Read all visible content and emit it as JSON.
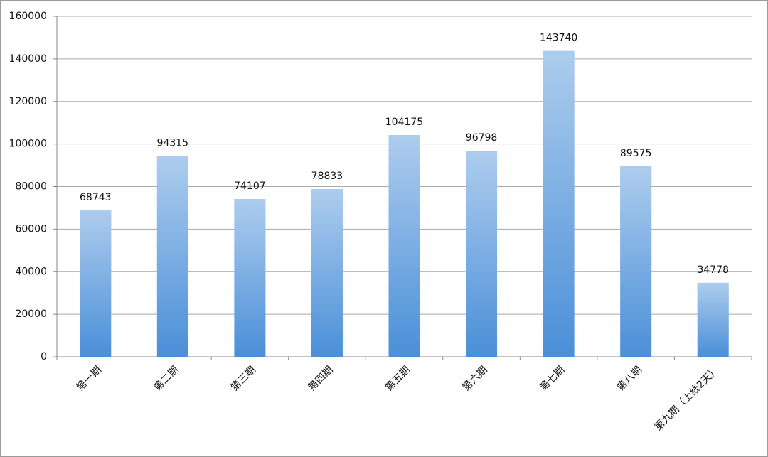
{
  "chart_data": {
    "type": "bar",
    "categories": [
      "第一期",
      "第二期",
      "第三期",
      "第四期",
      "第五期",
      "第六期",
      "第七期",
      "第八期",
      "第九期（上线2天）"
    ],
    "values": [
      68743,
      94315,
      74107,
      78833,
      104175,
      96798,
      143740,
      89575,
      34778
    ],
    "color": "#4a8fd8",
    "ylim": [
      0,
      160000
    ],
    "yticks": [
      0,
      20000,
      40000,
      60000,
      80000,
      100000,
      120000,
      140000,
      160000
    ],
    "grid": true
  }
}
